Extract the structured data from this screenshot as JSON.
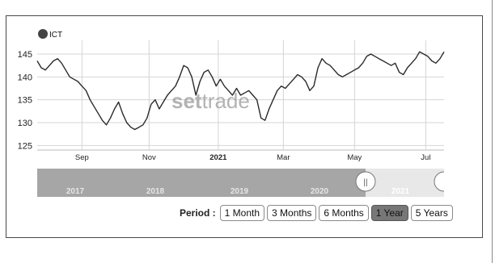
{
  "chart_data": {
    "type": "line",
    "legend": [
      {
        "name": "ICT",
        "color": "#444444"
      }
    ],
    "watermark": {
      "bold": "set",
      "light": "trade"
    },
    "y_ticks": [
      125,
      130,
      135,
      140,
      145
    ],
    "ylim": [
      124,
      148
    ],
    "x_tick_labels": [
      {
        "label": "Sep",
        "t": 0.11,
        "bold": false
      },
      {
        "label": "Nov",
        "t": 0.275,
        "bold": false
      },
      {
        "label": "2021",
        "t": 0.445,
        "bold": true
      },
      {
        "label": "Mar",
        "t": 0.605,
        "bold": false
      },
      {
        "label": "May",
        "t": 0.78,
        "bold": false
      },
      {
        "label": "Jul",
        "t": 0.955,
        "bold": false
      }
    ],
    "series": [
      {
        "name": "ICT",
        "x": [
          0,
          0.01,
          0.02,
          0.03,
          0.04,
          0.05,
          0.06,
          0.07,
          0.08,
          0.09,
          0.1,
          0.11,
          0.12,
          0.13,
          0.14,
          0.15,
          0.16,
          0.17,
          0.18,
          0.19,
          0.2,
          0.21,
          0.22,
          0.23,
          0.24,
          0.25,
          0.26,
          0.27,
          0.28,
          0.29,
          0.3,
          0.31,
          0.32,
          0.33,
          0.34,
          0.35,
          0.36,
          0.37,
          0.38,
          0.39,
          0.4,
          0.41,
          0.42,
          0.43,
          0.44,
          0.45,
          0.46,
          0.47,
          0.48,
          0.49,
          0.5,
          0.51,
          0.52,
          0.53,
          0.54,
          0.55,
          0.56,
          0.57,
          0.58,
          0.59,
          0.6,
          0.61,
          0.62,
          0.63,
          0.64,
          0.65,
          0.66,
          0.67,
          0.68,
          0.69,
          0.7,
          0.71,
          0.72,
          0.73,
          0.74,
          0.75,
          0.76,
          0.77,
          0.78,
          0.79,
          0.8,
          0.81,
          0.82,
          0.83,
          0.84,
          0.85,
          0.86,
          0.87,
          0.88,
          0.89,
          0.9,
          0.91,
          0.92,
          0.93,
          0.94,
          0.95,
          0.96,
          0.97,
          0.98,
          0.99,
          1.0
        ],
        "values": [
          143.5,
          142,
          141.5,
          142.5,
          143.5,
          144,
          143,
          141.5,
          140,
          139.5,
          139,
          138,
          137,
          135,
          133.5,
          132,
          130.5,
          129.5,
          131,
          133,
          134.5,
          132,
          130,
          129,
          128.5,
          129,
          129.5,
          131,
          134,
          135,
          133,
          134.5,
          136,
          137,
          138,
          140,
          142.5,
          142,
          140,
          136,
          139,
          141,
          141.5,
          140,
          138,
          139.5,
          138,
          137,
          136,
          137.5,
          136,
          136.5,
          137,
          136,
          135,
          131,
          130.5,
          133,
          135,
          137,
          138,
          137.5,
          138.5,
          139.5,
          140.5,
          140,
          139,
          137,
          138,
          142,
          144,
          143,
          142.5,
          141.5,
          140.5,
          140,
          140.5,
          141,
          141.5,
          142,
          143,
          144.5,
          145,
          144.5,
          144,
          143.5,
          143,
          142.5,
          143,
          141,
          140.5,
          142,
          143,
          144,
          145.5,
          145,
          144.5,
          143.5,
          143,
          144,
          145.5
        ]
      }
    ],
    "navigator": {
      "years": [
        "2017",
        "2018",
        "2019",
        "2020",
        "2021"
      ],
      "handle_label": "||"
    }
  },
  "period": {
    "label": "Period :",
    "options": [
      "1 Month",
      "3 Months",
      "6 Months",
      "1 Year",
      "5 Years"
    ],
    "selected": "1 Year"
  }
}
